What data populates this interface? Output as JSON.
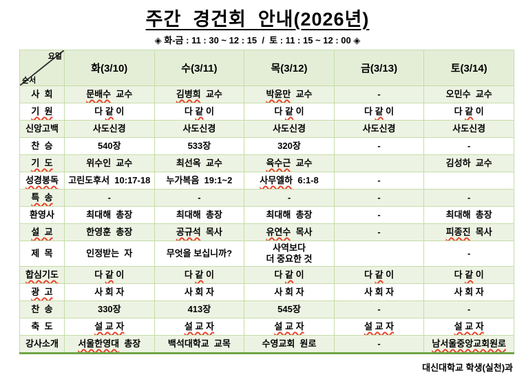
{
  "title": "주간  경건회  안내(2026년)",
  "subtitle": "◈ 화-금 : 11 : 30 ~ 12 : 15  /  토 : 11 : 15 ~ 12 : 00 ◈",
  "footer": "대신대학교 학생(실천)과",
  "colors": {
    "accent_green": "#6FA447",
    "grid_green": "#C5DCA8",
    "row_shade": "#EDF3E3",
    "header_shade": "#E4EED7",
    "misspell_red": "#E8442C"
  },
  "table": {
    "corner": {
      "top": "요일",
      "bottom": "순서"
    },
    "columns": [
      "화(3/10)",
      "수(3/11)",
      "목(3/12)",
      "금(3/13)",
      "토(3/14)"
    ],
    "rows": [
      {
        "label": "사  회",
        "cells": [
          [
            [
              "문배수",
              1
            ],
            [
              "  교수",
              0
            ]
          ],
          [
            [
              "김병희",
              1
            ],
            [
              "  교수",
              0
            ]
          ],
          [
            [
              "박윤만",
              1
            ],
            [
              "  교수",
              0
            ]
          ],
          "-",
          "오민수  교수"
        ]
      },
      {
        "label": [
          [
            "기  원",
            1
          ]
        ],
        "cells": [
          [
            [
              "다 ",
              0
            ],
            [
              "같",
              1
            ],
            [
              " 이",
              0
            ]
          ],
          [
            [
              "다 ",
              0
            ],
            [
              "같",
              1
            ],
            [
              " 이",
              0
            ]
          ],
          [
            [
              "다 ",
              0
            ],
            [
              "같",
              1
            ],
            [
              " 이",
              0
            ]
          ],
          [
            [
              "다 ",
              0
            ],
            [
              "같",
              1
            ],
            [
              " 이",
              0
            ]
          ],
          [
            [
              "다 ",
              0
            ],
            [
              "같",
              1
            ],
            [
              " 이",
              0
            ]
          ]
        ]
      },
      {
        "label": "신앙고백",
        "cells": [
          "사도신경",
          "사도신경",
          "사도신경",
          "사도신경",
          "사도신경"
        ]
      },
      {
        "label": "찬  승",
        "cells": [
          "540장",
          "533장",
          "320장",
          "-",
          "-"
        ]
      },
      {
        "label": [
          [
            "기  도",
            1
          ]
        ],
        "cells": [
          "위수인  교수",
          "최선옥  교수",
          [
            [
              "육수근",
              1
            ],
            [
              "  교수",
              0
            ]
          ],
          "",
          "김성하  교수"
        ]
      },
      {
        "label": [
          [
            "성경봉독",
            1
          ]
        ],
        "cells": [
          "고린도후서  10:17-18",
          "누가복음  19:1~2",
          [
            [
              "사무엘하",
              1
            ],
            [
              "  6:1-8",
              0
            ]
          ],
          "-",
          ""
        ]
      },
      {
        "label": [
          [
            "특  송",
            1
          ]
        ],
        "cells": [
          "-",
          "-",
          "-",
          "-",
          "-"
        ]
      },
      {
        "label": "환영사",
        "cells": [
          "최대해  총장",
          "최대해  총장",
          "최대해  총장",
          "-",
          "최대해  총장"
        ]
      },
      {
        "label": [
          [
            "설  교",
            1
          ]
        ],
        "cells": [
          "한영훈  총장",
          [
            [
              "공규석",
              1
            ],
            [
              "  목사",
              0
            ]
          ],
          [
            [
              "유연수",
              1
            ],
            [
              "  목사",
              0
            ]
          ],
          "-",
          [
            [
              "피종진",
              1
            ],
            [
              "  목사",
              0
            ]
          ]
        ]
      },
      {
        "label": "제  목",
        "cells": [
          "인정받는  자",
          "무엇을 보십니까?",
          "사역보다\n더 중요한 것",
          "",
          "-"
        ]
      },
      {
        "label": [
          [
            "합심기도",
            1
          ]
        ],
        "cells": [
          [
            [
              "다 ",
              0
            ],
            [
              "같",
              1
            ],
            [
              " 이",
              0
            ]
          ],
          [
            [
              "다 ",
              0
            ],
            [
              "같",
              1
            ],
            [
              " 이",
              0
            ]
          ],
          [
            [
              "다 ",
              0
            ],
            [
              "같",
              1
            ],
            [
              " 이",
              0
            ]
          ],
          [
            [
              "다 ",
              0
            ],
            [
              "같",
              1
            ],
            [
              " 이",
              0
            ]
          ],
          [
            [
              "다 ",
              0
            ],
            [
              "같",
              1
            ],
            [
              " 이",
              0
            ]
          ]
        ]
      },
      {
        "label": [
          [
            "광  고",
            1
          ]
        ],
        "cells": [
          "사 회 자",
          "사 회 자",
          "사 회 자",
          "사 회 자",
          "사 회 자"
        ]
      },
      {
        "label": "찬  송",
        "cells": [
          "330장",
          "413장",
          "545장",
          "-",
          "-"
        ]
      },
      {
        "label": "축  도",
        "cells": [
          [
            [
              "설 교 자",
              1
            ]
          ],
          [
            [
              "설 교 자",
              1
            ]
          ],
          [
            [
              "설 교 자",
              1
            ]
          ],
          [
            [
              "설 교 자",
              1
            ]
          ],
          [
            [
              "설 교 자",
              1
            ]
          ]
        ]
      },
      {
        "label": "강사소개",
        "cells": [
          [
            [
              "서울한영대",
              1
            ],
            [
              "  총장",
              0
            ]
          ],
          "백석대학교  교목",
          "수영교회  원로",
          "-",
          [
            [
              "남서울중앙교회원로",
              1
            ]
          ]
        ]
      }
    ]
  }
}
